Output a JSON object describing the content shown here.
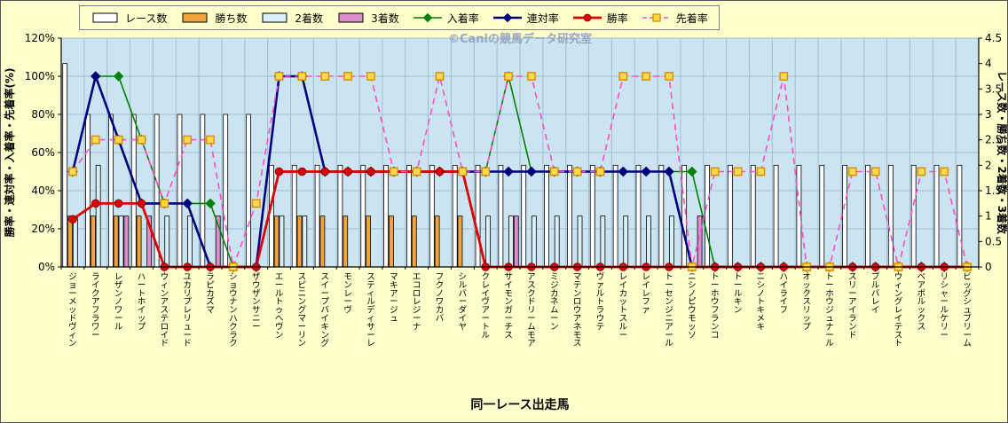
{
  "watermark": "©Caniの競馬データ研究室",
  "chart_data": {
    "type": "combo-bar-line",
    "title": "",
    "xlabel": "同一レース出走馬",
    "ylabel_left": "勝率・連対率・入着率・先着率(%)",
    "ylabel_right": "レース数・勝ち数・2着数・3着数",
    "ylim_left": [
      0,
      120
    ],
    "ylim_right": [
      0,
      4.5
    ],
    "left_ticks": [
      {
        "value": 0,
        "label": "0%"
      },
      {
        "value": 20,
        "label": "20%"
      },
      {
        "value": 40,
        "label": "40%"
      },
      {
        "value": 60,
        "label": "60%"
      },
      {
        "value": 80,
        "label": "80%"
      },
      {
        "value": 100,
        "label": "100%"
      },
      {
        "value": 120,
        "label": "120%"
      }
    ],
    "right_ticks": [
      {
        "value": 0,
        "label": "0"
      },
      {
        "value": 0.5,
        "label": "0.5"
      },
      {
        "value": 1,
        "label": "1"
      },
      {
        "value": 1.5,
        "label": "1.5"
      },
      {
        "value": 2,
        "label": "2"
      },
      {
        "value": 2.5,
        "label": "2.5"
      },
      {
        "value": 3,
        "label": "3"
      },
      {
        "value": 3.5,
        "label": "3.5"
      },
      {
        "value": 4,
        "label": "4"
      },
      {
        "value": 4.5,
        "label": "4.5"
      }
    ],
    "grid": true,
    "legend_position": "top",
    "categories": [
      "ジョーメッドヴィン",
      "ライクアフラワー",
      "レザンノワール",
      "ハートホイップ",
      "ウィンアステロイド",
      "ユカリプレリュード",
      "ラピカズマ",
      "ショウナンハクラク",
      "ザウザンサニー",
      "エールトゥヘヴン",
      "スピニングマーリン",
      "スイープバイキング",
      "モンレーヴ",
      "スティルディサーレ",
      "マキアージュ",
      "エコロレジーナ",
      "フクノワカバ",
      "シルバーダイヤ",
      "クレイヴアートル",
      "サイモンガーチス",
      "アスクドリームモア",
      "ミジカネムーン",
      "マテンロウアネモス",
      "ヴァルトラウテ",
      "レイカットスルー",
      "レイレファ",
      "トーセンジニアール",
      "ニシノピウモッソ",
      "トーホウフランコ",
      "トールキン",
      "ニシノトキメキ",
      "ハイライフ",
      "オックスリップ",
      "トーホウジュナール",
      "スリーアイランド",
      "ブルバレイ",
      "ウィングレイテスト",
      "ベアポルックス",
      "リシャールケリー",
      "ビッグシュブリーム"
    ],
    "bar_series": [
      {
        "key": "races",
        "name": "レース数",
        "color": "#FFFFFF",
        "values": [
          4,
          3,
          3,
          3,
          3,
          3,
          3,
          3,
          3,
          2,
          2,
          2,
          2,
          2,
          2,
          2,
          2,
          2,
          2,
          2,
          2,
          2,
          2,
          2,
          2,
          2,
          2,
          2,
          2,
          2,
          2,
          2,
          2,
          2,
          2,
          2,
          2,
          2,
          2,
          2
        ]
      },
      {
        "key": "wins",
        "name": "勝ち数",
        "color": "#F2A33C",
        "values": [
          1,
          1,
          1,
          1,
          0,
          0,
          0,
          0,
          0,
          1,
          1,
          1,
          1,
          1,
          1,
          1,
          1,
          1,
          0,
          0,
          0,
          0,
          0,
          0,
          0,
          0,
          0,
          0,
          0,
          0,
          0,
          0,
          0,
          0,
          0,
          0,
          0,
          0,
          0,
          0
        ]
      },
      {
        "key": "seconds",
        "name": "2着数",
        "color": "#DAF0F8",
        "values": [
          1,
          2,
          1,
          0,
          1,
          1,
          0,
          0,
          0,
          1,
          1,
          0,
          0,
          0,
          0,
          0,
          0,
          0,
          1,
          1,
          1,
          1,
          1,
          1,
          1,
          1,
          1,
          0,
          0,
          0,
          0,
          0,
          0,
          0,
          0,
          0,
          0,
          0,
          0,
          0
        ]
      },
      {
        "key": "thirds",
        "name": "3着数",
        "color": "#DD8ECE",
        "values": [
          0,
          0,
          1,
          1,
          0,
          0,
          1,
          0,
          0,
          0,
          0,
          0,
          0,
          0,
          0,
          0,
          0,
          0,
          0,
          1,
          0,
          0,
          0,
          0,
          0,
          0,
          0,
          1,
          0,
          0,
          0,
          0,
          0,
          0,
          0,
          0,
          0,
          0,
          0,
          0
        ]
      }
    ],
    "line_series": [
      {
        "key": "place_rate",
        "name": "入着率",
        "color": "#008000",
        "marker": "diamond",
        "marker_fill": "#008000",
        "dash": false,
        "width": 1.6,
        "values": [
          50,
          100,
          100,
          66.7,
          33.3,
          33.3,
          33.3,
          0,
          0,
          100,
          100,
          50,
          50,
          50,
          50,
          50,
          50,
          50,
          50,
          100,
          50,
          50,
          50,
          50,
          50,
          50,
          50,
          50,
          0,
          0,
          0,
          0,
          0,
          0,
          0,
          0,
          0,
          0,
          0,
          0
        ]
      },
      {
        "key": "quinella_rate",
        "name": "連対率",
        "color": "#00007F",
        "marker": "diamond",
        "marker_fill": "#00007F",
        "dash": false,
        "width": 2.6,
        "values": [
          50,
          100,
          66.7,
          33.3,
          33.3,
          33.3,
          0,
          0,
          0,
          100,
          100,
          50,
          50,
          50,
          50,
          50,
          50,
          50,
          50,
          50,
          50,
          50,
          50,
          50,
          50,
          50,
          50,
          0,
          0,
          0,
          0,
          0,
          0,
          0,
          0,
          0,
          0,
          0,
          0,
          0
        ]
      },
      {
        "key": "win_rate",
        "name": "勝率",
        "color": "#DD0000",
        "marker": "circle",
        "marker_fill": "#DD0000",
        "dash": false,
        "width": 2.8,
        "values": [
          25,
          33.3,
          33.3,
          33.3,
          0,
          0,
          0,
          0,
          0,
          50,
          50,
          50,
          50,
          50,
          50,
          50,
          50,
          50,
          0,
          0,
          0,
          0,
          0,
          0,
          0,
          0,
          0,
          0,
          0,
          0,
          0,
          0,
          0,
          0,
          0,
          0,
          0,
          0,
          0,
          0
        ]
      },
      {
        "key": "finish_ahead_rate",
        "name": "先着率",
        "color": "#FF4DC4",
        "marker": "square",
        "marker_fill": "#FFD94D",
        "marker_stroke": "#D98C00",
        "dash": true,
        "width": 1.6,
        "values": [
          50,
          66.7,
          66.7,
          66.7,
          33.3,
          66.7,
          66.7,
          0,
          33.3,
          100,
          100,
          100,
          100,
          100,
          50,
          50,
          100,
          50,
          50,
          100,
          100,
          50,
          50,
          50,
          100,
          100,
          100,
          0,
          50,
          50,
          50,
          100,
          0,
          0,
          50,
          50,
          0,
          50,
          50,
          0
        ]
      }
    ],
    "colors": {
      "page_bg": "#FFFFCC",
      "plot_bg": "#CBE4F2",
      "grid": "#9FBFD4",
      "axis": "#000000",
      "watermark": "#96A7BF"
    }
  }
}
